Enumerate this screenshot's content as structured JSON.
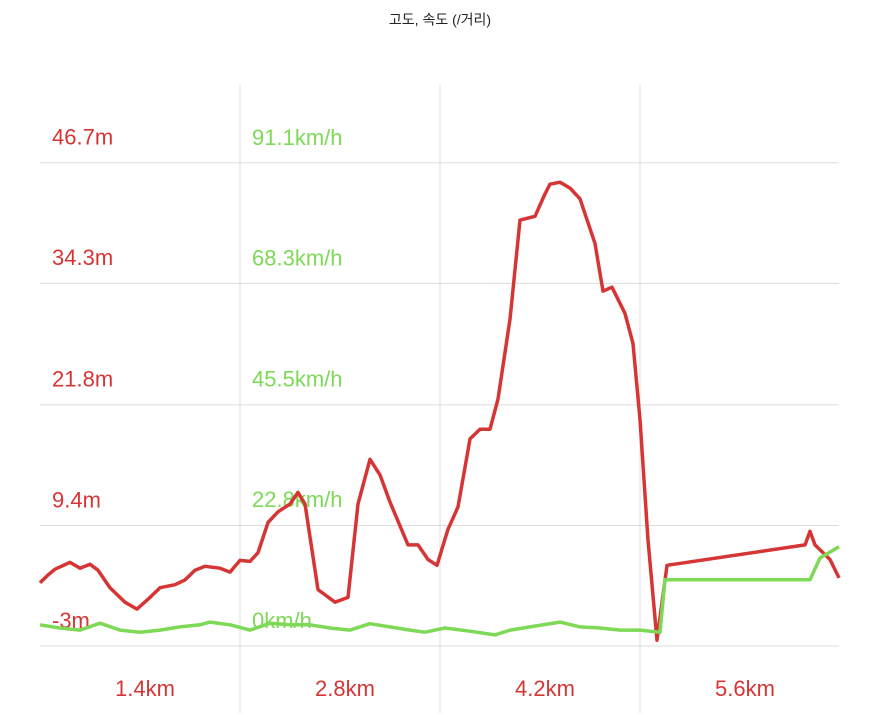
{
  "chart_data": {
    "type": "line",
    "title": "고도, 속도 (/거리)",
    "xlim": [
      0.7,
      6.3
    ],
    "xticks": [
      {
        "value": 1.4,
        "label": "1.4km"
      },
      {
        "value": 2.8,
        "label": "2.8km"
      },
      {
        "value": 4.2,
        "label": "4.2km"
      },
      {
        "value": 5.6,
        "label": "5.6km"
      }
    ],
    "ylim": [
      -3,
      54.7
    ],
    "yticks": [
      {
        "value": -3,
        "label": "-3m"
      },
      {
        "value": 9.4,
        "label": "9.4m"
      },
      {
        "value": 21.8,
        "label": "21.8m"
      },
      {
        "value": 34.3,
        "label": "34.3m"
      },
      {
        "value": 46.7,
        "label": "46.7m"
      }
    ],
    "y2lim": [
      0,
      105.8
    ],
    "y2ticks": [
      {
        "value": 0,
        "label": "0km/h"
      },
      {
        "value": 22.8,
        "label": "22.8km/h"
      },
      {
        "value": 45.5,
        "label": "45.5km/h"
      },
      {
        "value": 68.3,
        "label": "68.3km/h"
      },
      {
        "value": 91.1,
        "label": "91.1km/h"
      }
    ],
    "y_color": "#d63535",
    "y2_color": "#7dd956",
    "grid": true,
    "series": [
      {
        "color": "#d63535",
        "axis": "y",
        "x": [
          0.7,
          0.756,
          0.805,
          0.91,
          0.98,
          1.05,
          1.106,
          1.19,
          1.295,
          1.379,
          1.47,
          1.54,
          1.645,
          1.715,
          1.785,
          1.855,
          1.96,
          2.03,
          2.1,
          2.17,
          2.226,
          2.296,
          2.366,
          2.45,
          2.506,
          2.555,
          2.646,
          2.765,
          2.856,
          2.926,
          3.01,
          3.08,
          3.15,
          3.276,
          3.346,
          3.416,
          3.479,
          3.556,
          3.626,
          3.71,
          3.78,
          3.85,
          3.906,
          3.99,
          4.06,
          4.165,
          4.235,
          4.27,
          4.34,
          4.41,
          4.48,
          4.585,
          4.641,
          4.704,
          4.795,
          4.851,
          4.9,
          4.956,
          5.019,
          5.089,
          6.055,
          6.09,
          6.125,
          6.23,
          6.293
        ],
        "values": [
          3.5,
          4.3,
          4.9,
          5.6,
          5.0,
          5.4,
          4.8,
          3.0,
          1.5,
          0.8,
          2.0,
          3.0,
          3.3,
          3.8,
          4.8,
          5.2,
          5.0,
          4.6,
          5.8,
          5.7,
          6.6,
          9.7,
          10.8,
          11.6,
          12.8,
          11.6,
          2.8,
          1.5,
          2.0,
          11.6,
          16.2,
          14.6,
          11.8,
          7.4,
          7.4,
          5.9,
          5.3,
          9.0,
          11.3,
          18.3,
          19.3,
          19.3,
          22.4,
          30.6,
          40.8,
          41.2,
          43.5,
          44.5,
          44.7,
          44.1,
          43.0,
          38.4,
          33.5,
          33.9,
          31.2,
          28.1,
          20.3,
          7.9,
          -2.4,
          5.3,
          7.4,
          8.8,
          7.4,
          5.9,
          4.0
        ]
      },
      {
        "color": "#7dd956",
        "axis": "y2",
        "x": [
          0.7,
          0.84,
          0.98,
          1.12,
          1.26,
          1.4,
          1.54,
          1.68,
          1.82,
          1.89,
          2.03,
          2.17,
          2.31,
          2.45,
          2.59,
          2.73,
          2.87,
          3.01,
          3.15,
          3.29,
          3.395,
          3.535,
          3.71,
          3.885,
          3.99,
          4.13,
          4.34,
          4.48,
          4.62,
          4.76,
          4.9,
          5.04,
          5.075,
          6.09,
          6.16,
          6.293
        ],
        "values": [
          4.0,
          3.4,
          3.0,
          4.3,
          3.0,
          2.6,
          3.0,
          3.6,
          4.0,
          4.5,
          4.0,
          3.0,
          4.3,
          4.0,
          4.0,
          3.4,
          3.0,
          4.2,
          3.6,
          3.0,
          2.6,
          3.4,
          2.8,
          2.1,
          3.0,
          3.6,
          4.5,
          3.6,
          3.4,
          3.0,
          3.0,
          2.6,
          12.5,
          12.5,
          16.6,
          18.7
        ]
      }
    ]
  }
}
